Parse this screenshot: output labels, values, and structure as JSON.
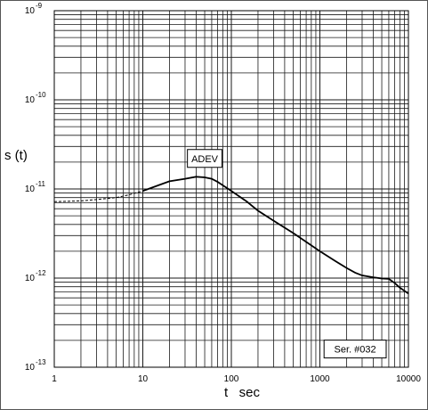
{
  "chart_data": {
    "type": "line",
    "title": "",
    "xlabel": "t   sec",
    "ylabel": "s (t)",
    "x_scale": "log",
    "y_scale": "log",
    "xlim": [
      1,
      10000
    ],
    "ylim": [
      1e-13,
      1e-09
    ],
    "grid": true,
    "x_ticks": [
      {
        "value": 1,
        "label": "1"
      },
      {
        "value": 10,
        "label": "10"
      },
      {
        "value": 100,
        "label": "100"
      },
      {
        "value": 1000,
        "label": "1000"
      },
      {
        "value": 10000,
        "label": "10000"
      }
    ],
    "y_ticks": [
      {
        "value": 1e-09,
        "base": "10",
        "exp": "-9"
      },
      {
        "value": 1e-10,
        "base": "10",
        "exp": "-10"
      },
      {
        "value": 1e-11,
        "base": "10",
        "exp": "-11"
      },
      {
        "value": 1e-12,
        "base": "10",
        "exp": "-12"
      },
      {
        "value": 1e-13,
        "base": "10",
        "exp": "-13"
      }
    ],
    "series": [
      {
        "x": [
          1,
          2,
          3,
          5,
          7,
          10,
          15,
          20,
          30,
          40,
          50,
          60,
          70,
          80,
          100,
          150,
          200,
          300,
          500,
          700,
          1000,
          1500,
          2000,
          2500,
          3000,
          4000,
          5000,
          6000,
          7000,
          8000,
          10000
        ],
        "y": [
          7.2e-12,
          7.35e-12,
          7.6e-12,
          8e-12,
          8.6e-12,
          9.5e-12,
          1.1e-11,
          1.22e-11,
          1.3e-11,
          1.37e-11,
          1.35e-11,
          1.3e-11,
          1.2e-11,
          1.1e-11,
          9.5e-12,
          7.2e-12,
          5.7e-12,
          4.4e-12,
          3.2e-12,
          2.55e-12,
          2e-12,
          1.55e-12,
          1.3e-12,
          1.15e-12,
          1.07e-12,
          1.02e-12,
          9.9e-13,
          9.8e-13,
          8.8e-13,
          7.8e-13,
          6.7e-13
        ]
      }
    ],
    "annotations": [
      {
        "text": "ADEV",
        "x": 50,
        "y": 2.2e-11
      },
      {
        "text": "Ser. #032",
        "x": 2500,
        "y": 1.6e-13
      }
    ]
  }
}
